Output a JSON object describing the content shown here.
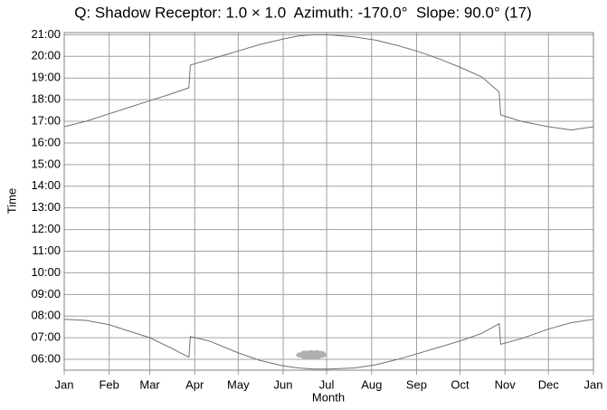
{
  "chart_data": {
    "type": "line",
    "title": "Q: Shadow Receptor: 1.0 × 1.0  Azimuth: -170.0°  Slope: 90.0° (17)",
    "x_label": "Month",
    "y_label": "Time",
    "x": [
      0,
      15,
      31,
      45,
      59,
      73,
      86,
      87,
      100,
      120,
      135,
      151,
      162,
      172,
      182,
      200,
      215,
      230,
      243,
      258,
      273,
      288,
      300,
      301,
      315,
      334,
      350,
      365
    ],
    "series": [
      {
        "color": "#707070",
        "values": [
          16.75,
          17.0,
          17.35,
          17.65,
          17.95,
          18.25,
          18.55,
          19.6,
          19.85,
          20.25,
          20.55,
          20.8,
          20.95,
          21.0,
          21.0,
          20.9,
          20.75,
          20.5,
          20.25,
          19.9,
          19.5,
          19.05,
          18.35,
          17.3,
          17.0,
          16.75,
          16.6,
          16.75
        ]
      },
      {
        "color": "#707070",
        "values": [
          7.85,
          7.8,
          7.6,
          7.3,
          7.0,
          6.55,
          6.1,
          7.05,
          6.85,
          6.3,
          5.95,
          5.7,
          5.6,
          5.55,
          5.55,
          5.6,
          5.75,
          6.0,
          6.25,
          6.55,
          6.85,
          7.2,
          7.65,
          6.7,
          6.95,
          7.4,
          7.7,
          7.85
        ]
      }
    ],
    "shadow": {
      "color": "#b0b0b0",
      "x": [
        163,
        166,
        169,
        172,
        175,
        178,
        166,
        170,
        174,
        177
      ],
      "values": [
        6.2,
        6.15,
        6.1,
        6.1,
        6.15,
        6.2,
        6.28,
        6.3,
        6.3,
        6.27
      ]
    },
    "xlim": [
      0,
      365
    ],
    "xticks": [
      {
        "value": 0,
        "label": "Jan"
      },
      {
        "value": 31,
        "label": "Feb"
      },
      {
        "value": 59,
        "label": "Mar"
      },
      {
        "value": 90,
        "label": "Apr"
      },
      {
        "value": 120,
        "label": "May"
      },
      {
        "value": 151,
        "label": "Jun"
      },
      {
        "value": 181,
        "label": "Jul"
      },
      {
        "value": 212,
        "label": "Aug"
      },
      {
        "value": 243,
        "label": "Sep"
      },
      {
        "value": 273,
        "label": "Oct"
      },
      {
        "value": 304,
        "label": "Nov"
      },
      {
        "value": 334,
        "label": "Dec"
      },
      {
        "value": 365,
        "label": "Jan"
      }
    ],
    "ylim": [
      5.5,
      21.1
    ],
    "yticks": [
      {
        "value": 6,
        "label": "06:00"
      },
      {
        "value": 7,
        "label": "07:00"
      },
      {
        "value": 8,
        "label": "08:00"
      },
      {
        "value": 9,
        "label": "09:00"
      },
      {
        "value": 10,
        "label": "10:00"
      },
      {
        "value": 11,
        "label": "11:00"
      },
      {
        "value": 12,
        "label": "12:00"
      },
      {
        "value": 13,
        "label": "13:00"
      },
      {
        "value": 14,
        "label": "14:00"
      },
      {
        "value": 15,
        "label": "15:00"
      },
      {
        "value": 16,
        "label": "16:00"
      },
      {
        "value": 17,
        "label": "17:00"
      },
      {
        "value": 18,
        "label": "18:00"
      },
      {
        "value": 19,
        "label": "19:00"
      },
      {
        "value": 20,
        "label": "20:00"
      },
      {
        "value": 21,
        "label": "21:00"
      }
    ],
    "grid": true
  }
}
